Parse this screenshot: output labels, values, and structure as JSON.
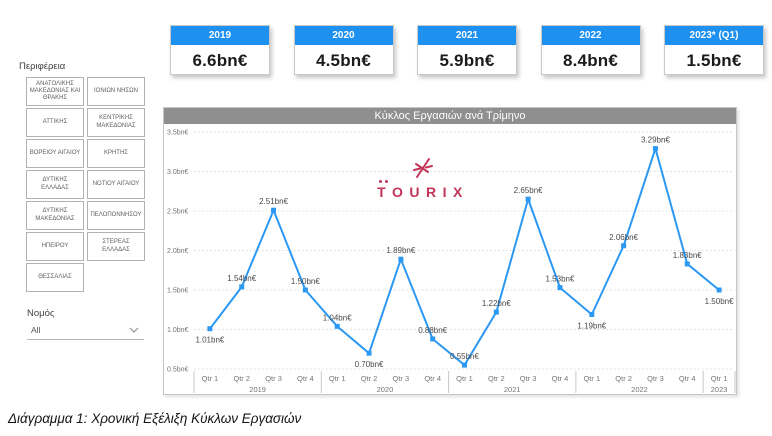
{
  "sidebar": {
    "region_label": "Περιφέρεια",
    "regions": [
      "ΑΝΑΤΟΛΙΚΗΣ ΜΑΚΕΔΟΝΙΑΣ ΚΑΙ ΘΡΑΚΗΣ",
      "ΙΟΝΙΩΝ ΝΗΣΩΝ",
      "ΑΤΤΙΚΗΣ",
      "ΚΕΝΤΡΙΚΗΣ ΜΑΚΕΔΟΝΙΑΣ",
      "ΒΟΡΕΙΟΥ ΑΙΓΑΙΟΥ",
      "ΚΡΗΤΗΣ",
      "ΔΥΤΙΚΗΣ ΕΛΛΑΔΑΣ",
      "ΝΟΤΙΟΥ ΑΙΓΑΙΟΥ",
      "ΔΥΤΙΚΗΣ ΜΑΚΕΔΟΝΙΑΣ",
      "ΠΕΛΟΠΟΝΝΗΣΟΥ",
      "ΗΠΕΙΡΟΥ",
      "ΣΤΕΡΕΑΣ ΕΛΛΑΔΑΣ",
      "ΘΕΣΣΑΛΙΑΣ"
    ],
    "nomos_label": "Νομός",
    "nomos_value": "All"
  },
  "cards": [
    {
      "year": "2019",
      "value": "6.6bn€"
    },
    {
      "year": "2020",
      "value": "4.5bn€"
    },
    {
      "year": "2021",
      "value": "5.9bn€"
    },
    {
      "year": "2022",
      "value": "8.4bn€"
    },
    {
      "year": "2023* (Q1)",
      "value": "1.5bn€"
    }
  ],
  "logo": {
    "brand": "TOURIX"
  },
  "chart_data": {
    "type": "line",
    "title": "Κύκλος Εργασιών ανά Τρίμηνο",
    "ylabel": "bn€",
    "ylim": [
      0.5,
      3.5
    ],
    "grid": "dotted horizontal",
    "legend": "none",
    "y_ticks": [
      "3.5bn€",
      "3.0bn€",
      "2.5bn€",
      "2.0bn€",
      "1.5bn€",
      "1.0bn€",
      "0.5bn€"
    ],
    "groups": [
      {
        "year": "2019",
        "quarters": [
          "Qtr 1",
          "Qtr 2",
          "Qtr 3",
          "Qtr 4"
        ]
      },
      {
        "year": "2020",
        "quarters": [
          "Qtr 1",
          "Qtr 2",
          "Qtr 3",
          "Qtr 4"
        ]
      },
      {
        "year": "2021",
        "quarters": [
          "Qtr 1",
          "Qtr 2",
          "Qtr 3",
          "Qtr 4"
        ]
      },
      {
        "year": "2022",
        "quarters": [
          "Qtr 1",
          "Qtr 2",
          "Qtr 3",
          "Qtr 4"
        ]
      },
      {
        "year": "2023",
        "quarters": [
          "Qtr 1"
        ]
      }
    ],
    "series": [
      {
        "name": "Κύκλος Εργασιών",
        "values": [
          1.01,
          1.54,
          2.51,
          1.5,
          1.04,
          0.7,
          1.89,
          0.88,
          0.55,
          1.22,
          2.65,
          1.53,
          1.19,
          2.06,
          3.29,
          1.83,
          1.5
        ],
        "point_labels": [
          "1.01bn€",
          "1.54bn€",
          "2.51bn€",
          "1.50bn€",
          "1.04bn€",
          "0.70bn€",
          "1.89bn€",
          "0.88bn€",
          "0.55bn€",
          "1.22bn€",
          "2.65bn€",
          "1.53bn€",
          "1.19bn€",
          "2.06bn€",
          "3.29bn€",
          "1.83bn€",
          "1.50bn€"
        ],
        "label_pos": [
          "below",
          "above",
          "above",
          "above",
          "above",
          "below",
          "above",
          "above",
          "above",
          "above",
          "above",
          "above",
          "below",
          "above",
          "above",
          "above",
          "below"
        ]
      }
    ]
  },
  "caption": "Διάγραμμα 1: Χρονική Εξέλιξη Κύκλων Εργασιών",
  "colors": {
    "card_header_blue": "#1e90f0",
    "line_blue": "#2b98f3",
    "title_bar_gray": "#8f8f8f",
    "logo_crimson": "#c23458",
    "grid_gray": "#d9d9d9",
    "axis_text_gray": "#757575",
    "data_label_gray": "#4a4a4a"
  }
}
